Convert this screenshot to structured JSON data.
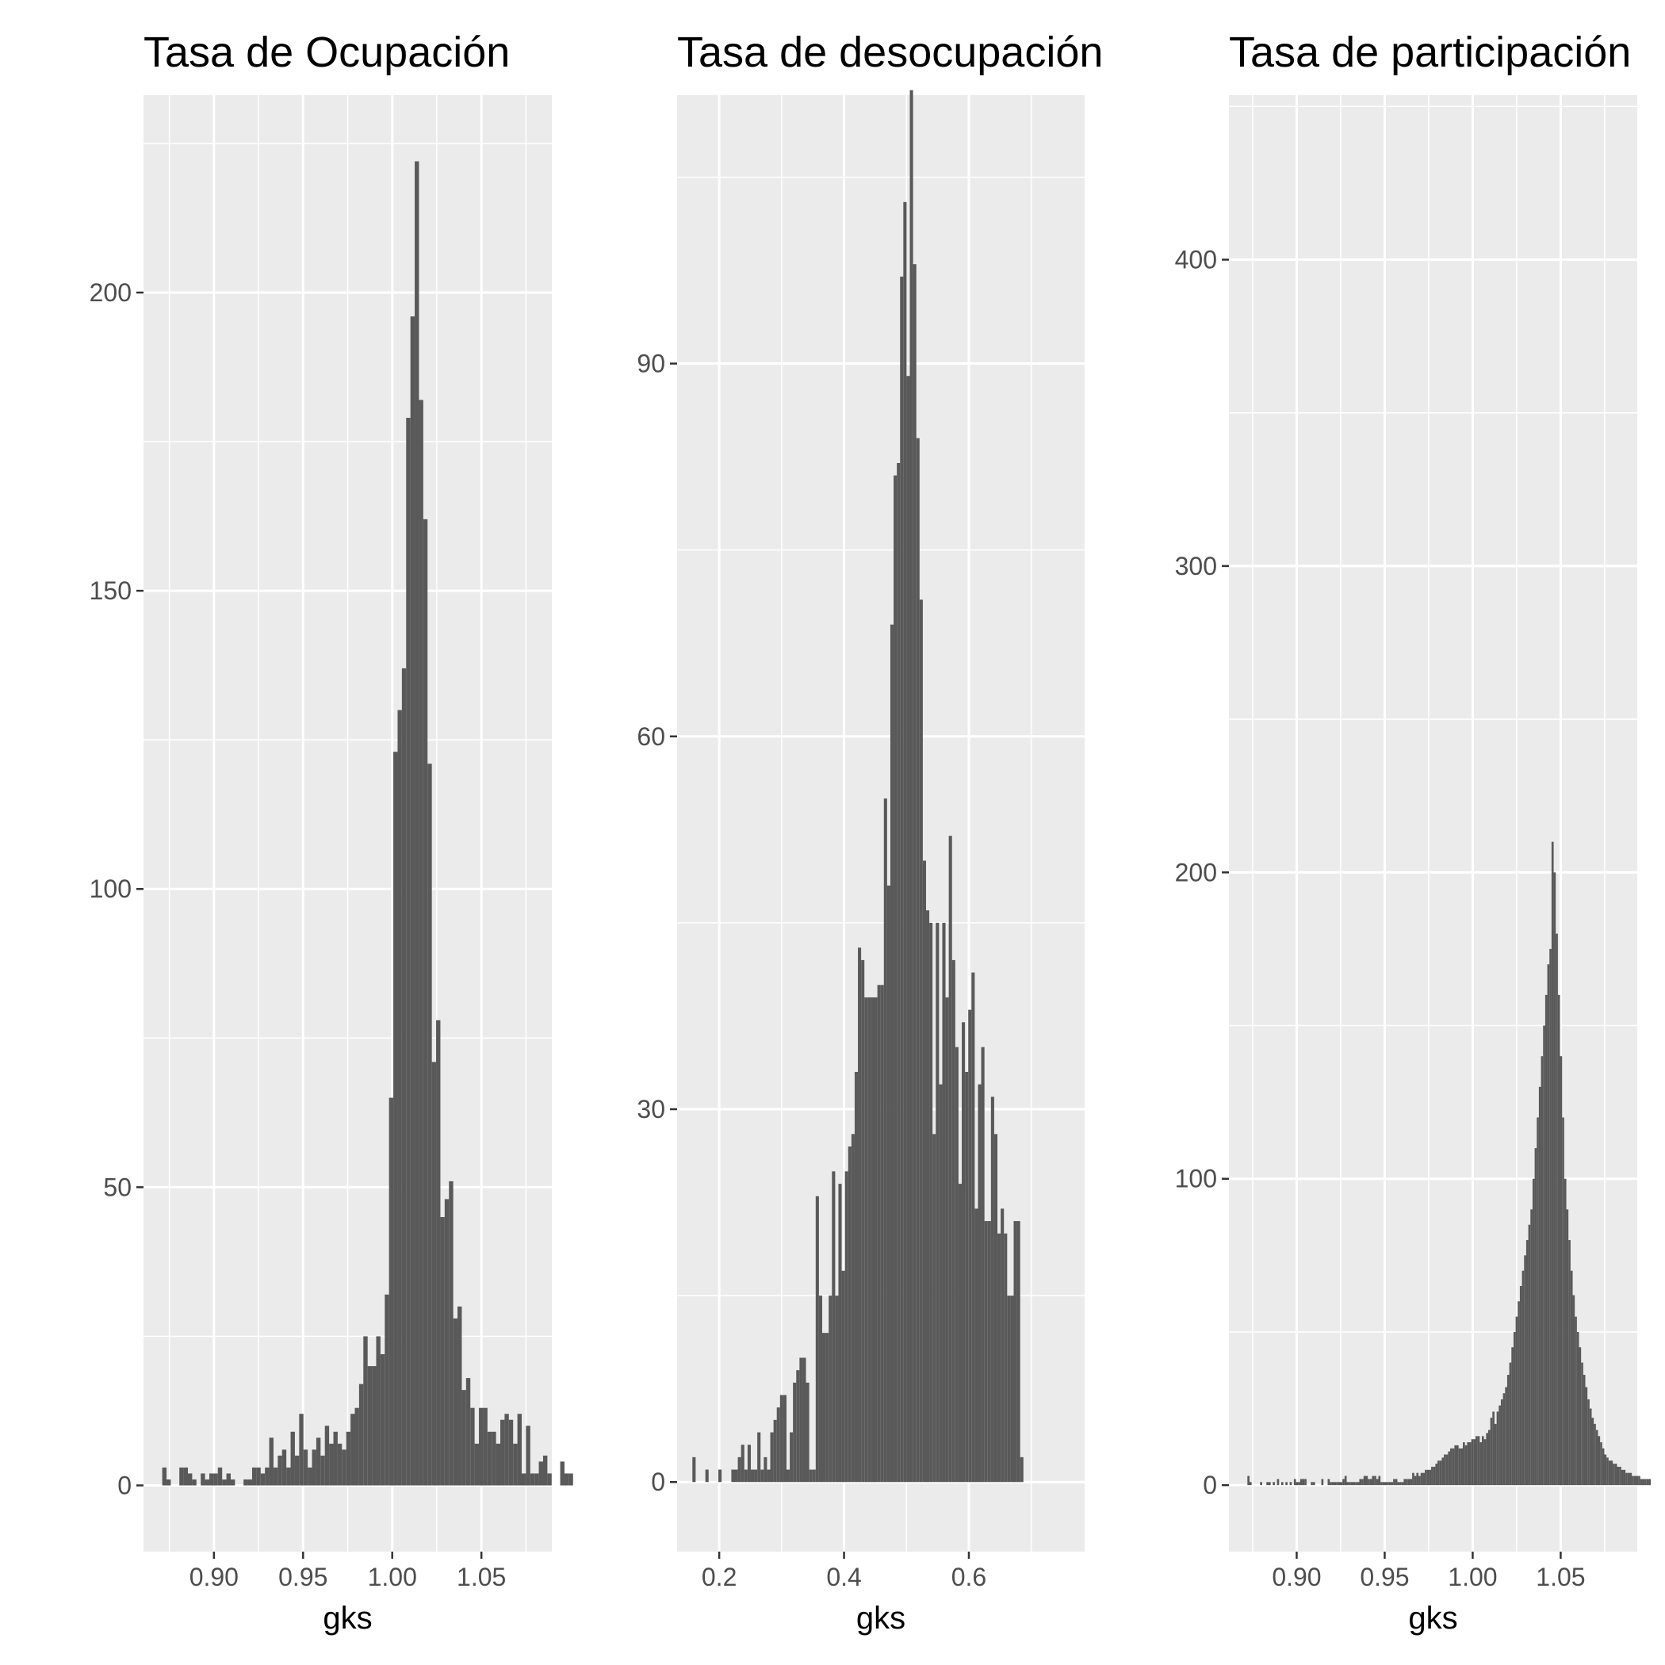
{
  "colors": {
    "panel": "#ebebeb",
    "grid": "#ffffff",
    "bar": "#595959",
    "tick_text": "#4d4d4d"
  },
  "chart_data": [
    {
      "type": "bar",
      "title": "Tasa de Ocupación",
      "xlabel": "gks",
      "ylabel": "",
      "xlim": [
        0.8605,
        1.0895
      ],
      "ylim": [
        -11.1,
        233.1
      ],
      "x_ticks": [
        "0.90",
        "0.95",
        "1.00",
        "1.05"
      ],
      "y_ticks": [
        "0",
        "50",
        "100",
        "150",
        "200"
      ],
      "grid": true,
      "bin_start": 0.871,
      "bin_width": 0.0024,
      "values": [
        3,
        1,
        0,
        0,
        3,
        3,
        2,
        1,
        0,
        2,
        1,
        2,
        2,
        3,
        1,
        2,
        1,
        0,
        0,
        1,
        1,
        3,
        3,
        2,
        3,
        8,
        3,
        5,
        6,
        3,
        9,
        5,
        12,
        6,
        3,
        6,
        8,
        5,
        10,
        7,
        9,
        7,
        6,
        9,
        12,
        13,
        17,
        25,
        20,
        20,
        25,
        22,
        32,
        65,
        123,
        130,
        137,
        179,
        196,
        222,
        182,
        162,
        121,
        71,
        78,
        45,
        48,
        51,
        28,
        30,
        16,
        18,
        13,
        7,
        13,
        13,
        9,
        9,
        7,
        11,
        12,
        11,
        7,
        12,
        2,
        10,
        2,
        2,
        4,
        5,
        2,
        0,
        0,
        4,
        2,
        2
      ]
    },
    {
      "type": "bar",
      "title": "Tasa de desocupación",
      "xlabel": "gks",
      "ylabel": "",
      "xlim": [
        0.1325,
        0.7855
      ],
      "ylim": [
        -5.6,
        111.6
      ],
      "x_ticks": [
        "0.2",
        "0.4",
        "0.6"
      ],
      "y_ticks": [
        "0",
        "30",
        "60",
        "90"
      ],
      "grid": true,
      "bin_start": 0.157,
      "bin_width": 0.0052,
      "values": [
        2,
        0,
        0,
        0,
        1,
        0,
        0,
        0,
        1,
        0,
        0,
        0,
        1,
        1,
        2,
        3,
        1,
        3,
        1,
        1,
        4,
        1,
        2,
        1,
        4,
        5,
        6,
        7,
        7,
        1,
        4,
        8,
        9,
        10,
        10,
        8,
        1,
        1,
        23,
        15,
        12,
        12,
        15,
        25,
        15,
        24,
        17,
        25,
        27,
        28,
        33,
        43,
        42,
        39,
        39,
        39,
        39,
        40,
        40,
        55,
        48,
        69,
        81,
        82,
        97,
        103,
        89,
        112,
        98,
        84,
        71,
        50,
        46,
        45,
        28,
        45,
        32,
        45,
        39,
        52,
        42,
        35,
        24,
        37,
        33,
        38,
        41,
        22,
        32,
        35,
        21,
        21,
        31,
        28,
        20,
        22,
        20,
        15,
        15,
        21,
        21,
        2
      ]
    },
    {
      "type": "bar",
      "title": "Tasa de participación",
      "xlabel": "gks",
      "ylabel": "",
      "xlim": [
        0.8615,
        1.0935
      ],
      "ylim": [
        -21.7,
        453.7
      ],
      "x_ticks": [
        "0.90",
        "0.95",
        "1.00",
        "1.05"
      ],
      "y_ticks": [
        "0",
        "100",
        "200",
        "300",
        "400"
      ],
      "grid": true,
      "bin_start": 0.872,
      "bin_width": 0.0012,
      "values": [
        3,
        1,
        0,
        0,
        0,
        0,
        1,
        0,
        0,
        1,
        1,
        0,
        1,
        0,
        2,
        0,
        1,
        0,
        1,
        0,
        1,
        0,
        2,
        1,
        1,
        2,
        2,
        2,
        0,
        0,
        1,
        1,
        0,
        0,
        0,
        2,
        0,
        0,
        2,
        1,
        1,
        1,
        1,
        1,
        1,
        2,
        3,
        1,
        1,
        1,
        1,
        1,
        1,
        2,
        2,
        3,
        3,
        2,
        2,
        3,
        3,
        2,
        3,
        1,
        1,
        1,
        1,
        1,
        1,
        2,
        2,
        1,
        1,
        1,
        2,
        2,
        2,
        2,
        4,
        3,
        4,
        3,
        4,
        4,
        5,
        5,
        5,
        6,
        6,
        7,
        8,
        8,
        9,
        10,
        10,
        11,
        12,
        12,
        13,
        13,
        12,
        12,
        14,
        13,
        14,
        14,
        15,
        15,
        16,
        16,
        14,
        16,
        15,
        17,
        18,
        22,
        24,
        20,
        24,
        26,
        28,
        30,
        32,
        36,
        40,
        45,
        50,
        55,
        60,
        65,
        70,
        75,
        80,
        85,
        90,
        100,
        110,
        120,
        130,
        140,
        150,
        160,
        170,
        175,
        210,
        200,
        180,
        160,
        140,
        120,
        100,
        90,
        80,
        70,
        62,
        55,
        50,
        45,
        40,
        36,
        32,
        28,
        25,
        22,
        20,
        18,
        16,
        14,
        12,
        10,
        9,
        8,
        8,
        7,
        7,
        6,
        6,
        5,
        5,
        4,
        4,
        4,
        3,
        3,
        3,
        3,
        2,
        2,
        2,
        2,
        2
      ]
    }
  ]
}
